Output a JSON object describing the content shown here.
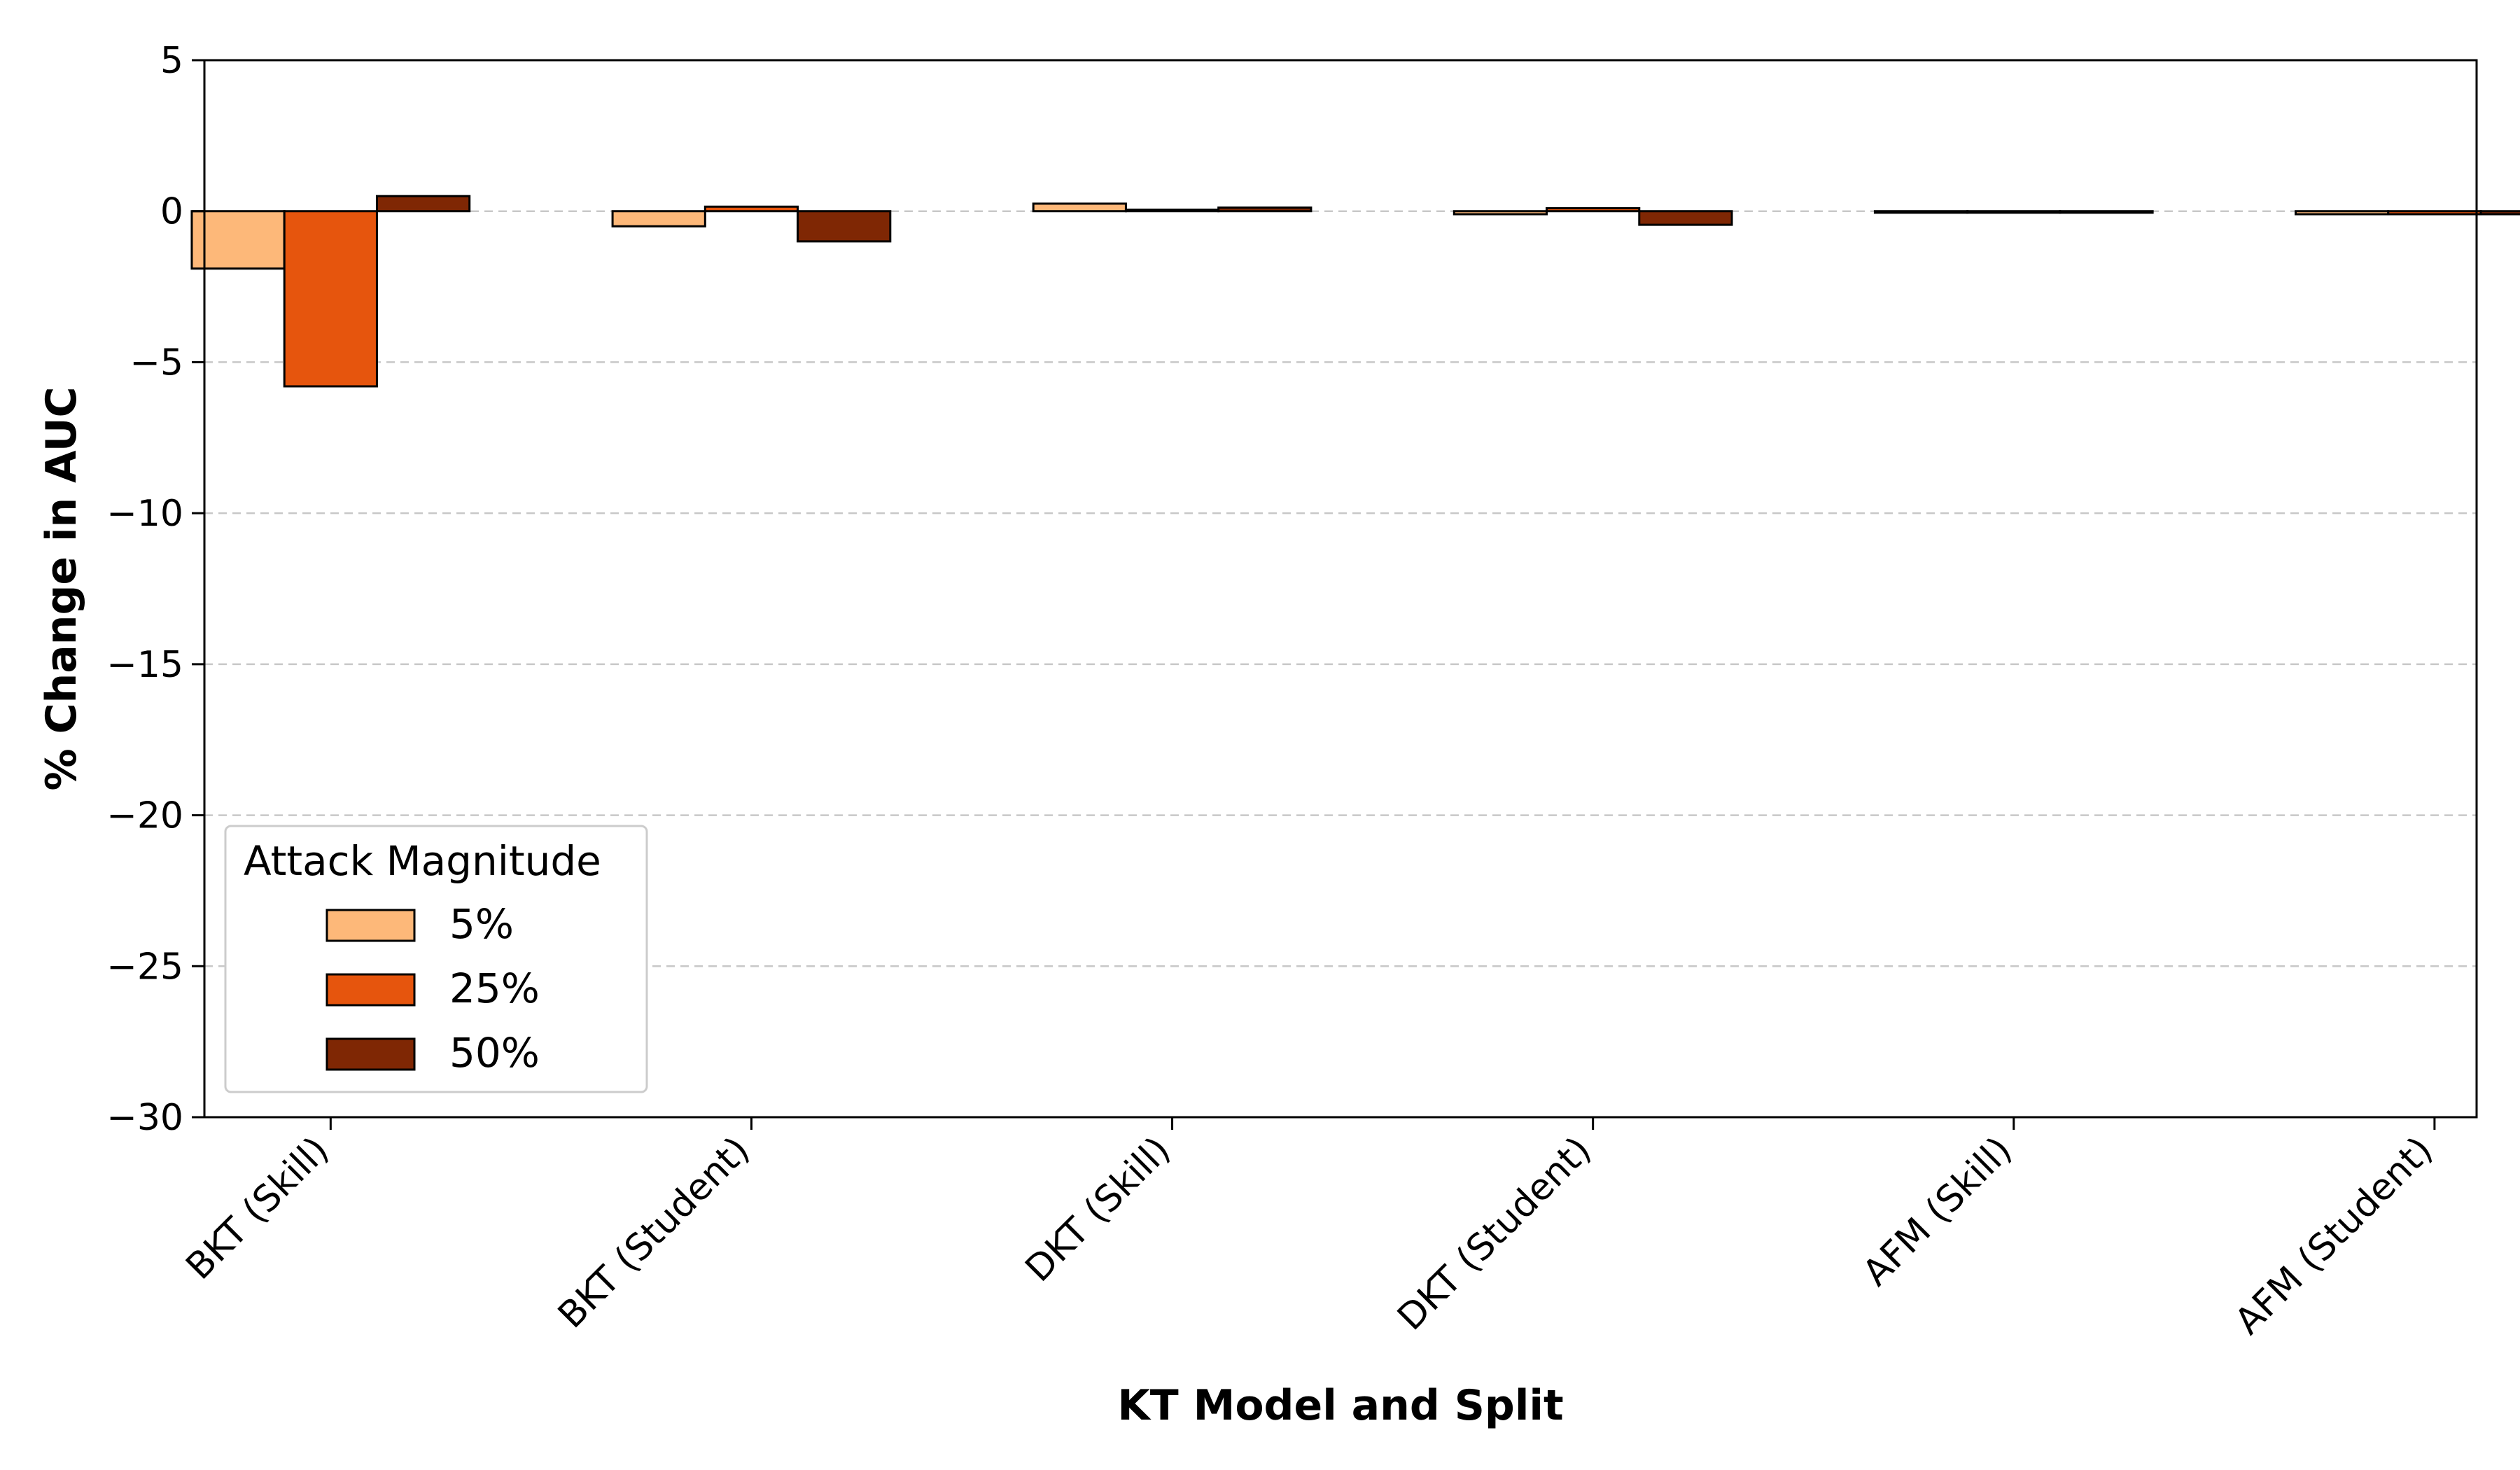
{
  "chart_data": {
    "type": "bar",
    "xlabel": "KT Model and Split",
    "ylabel": "% Change in AUC",
    "ylim": [
      -30,
      5
    ],
    "yticks": [
      5,
      0,
      -5,
      -10,
      -15,
      -20,
      -25,
      -30
    ],
    "ytick_labels": [
      "5",
      "0",
      "−5",
      "−10",
      "−15",
      "−20",
      "−25",
      "−30"
    ],
    "grid": "y, dashed",
    "legend_position": "lower-left",
    "legend_title": "Attack Magnitude",
    "categories": [
      "BKT (Skill)",
      "BKT (Student)",
      "DKT (Skill)",
      "DKT (Student)",
      "AFM (Skill)",
      "AFM (Student)"
    ],
    "series": [
      {
        "name": "5%",
        "color": "#fdb879",
        "values": [
          -1.9,
          -0.5,
          0.25,
          -0.1,
          -0.05,
          -0.1
        ]
      },
      {
        "name": "25%",
        "color": "#e6550d",
        "values": [
          -5.8,
          0.15,
          0.05,
          0.1,
          -0.05,
          -0.1
        ]
      },
      {
        "name": "50%",
        "color": "#7f2704",
        "values": [
          0.5,
          -1.0,
          0.12,
          -0.45,
          -0.05,
          -0.1
        ]
      }
    ]
  }
}
